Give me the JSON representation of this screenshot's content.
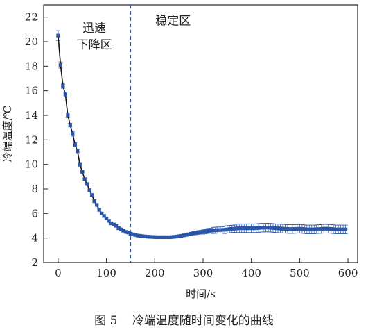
{
  "chart_data": {
    "type": "scatter",
    "xlabel": "时间/s",
    "ylabel": "冷端温度/℃",
    "xlim": [
      -30,
      620
    ],
    "ylim": [
      2,
      23
    ],
    "x_ticks": [
      0,
      100,
      200,
      300,
      400,
      500,
      600
    ],
    "y_ticks": [
      2,
      4,
      6,
      8,
      10,
      12,
      14,
      16,
      18,
      20,
      22
    ],
    "grid": false,
    "legend": "none",
    "marker_color": "#2b56a8",
    "line_color": "#111111",
    "divider": {
      "x": 150,
      "style": "dashed",
      "color": "#2b56a8"
    },
    "region_labels": [
      {
        "lines": [
          "迅速",
          "下降区"
        ],
        "x": 75,
        "y": 20.8
      },
      {
        "lines": [
          "稳定区"
        ],
        "x": 238,
        "y": 21.4
      }
    ],
    "series": [
      {
        "x": [
          0,
          5,
          10,
          15,
          20,
          25,
          30,
          35,
          40,
          45,
          50,
          55,
          60,
          65,
          70,
          75,
          80,
          85,
          90,
          95,
          100,
          105,
          110,
          115,
          120,
          125,
          130,
          135,
          140,
          145,
          150,
          155,
          160,
          165,
          170,
          175,
          180,
          185,
          190,
          195,
          200,
          205,
          210,
          215,
          220,
          225,
          230,
          235,
          240,
          245,
          250,
          255,
          260,
          265,
          270,
          275,
          280,
          285,
          290,
          295,
          300,
          305,
          310,
          315,
          320,
          325,
          330,
          335,
          340,
          345,
          350,
          355,
          360,
          365,
          370,
          375,
          380,
          385,
          390,
          395,
          400,
          405,
          410,
          415,
          420,
          425,
          430,
          435,
          440,
          445,
          450,
          455,
          460,
          465,
          470,
          475,
          480,
          485,
          490,
          495,
          500,
          505,
          510,
          515,
          520,
          525,
          530,
          535,
          540,
          545,
          550,
          555,
          560,
          565,
          570,
          575,
          580,
          585,
          590,
          595
        ],
        "y": [
          20.5,
          18.1,
          16.4,
          15.7,
          14.0,
          13.2,
          12.5,
          11.6,
          11.1,
          10.0,
          9.4,
          8.8,
          8.4,
          7.9,
          7.5,
          7.0,
          6.7,
          6.3,
          6.0,
          5.8,
          5.6,
          5.4,
          5.2,
          5.1,
          5.0,
          4.8,
          4.7,
          4.6,
          4.5,
          4.45,
          4.35,
          4.3,
          4.25,
          4.2,
          4.18,
          4.15,
          4.13,
          4.11,
          4.1,
          4.09,
          4.08,
          4.07,
          4.07,
          4.07,
          4.07,
          4.07,
          4.07,
          4.08,
          4.1,
          4.12,
          4.15,
          4.18,
          4.22,
          4.26,
          4.3,
          4.35,
          4.4,
          4.42,
          4.45,
          4.48,
          4.52,
          4.55,
          4.58,
          4.6,
          4.62,
          4.63,
          4.65,
          4.65,
          4.66,
          4.67,
          4.7,
          4.72,
          4.74,
          4.76,
          4.78,
          4.8,
          4.8,
          4.8,
          4.8,
          4.8,
          4.8,
          4.8,
          4.8,
          4.82,
          4.84,
          4.84,
          4.85,
          4.85,
          4.84,
          4.82,
          4.8,
          4.78,
          4.78,
          4.76,
          4.75,
          4.74,
          4.73,
          4.73,
          4.74,
          4.75,
          4.75,
          4.74,
          4.72,
          4.7,
          4.7,
          4.7,
          4.7,
          4.72,
          4.73,
          4.74,
          4.76,
          4.76,
          4.75,
          4.74,
          4.72,
          4.7,
          4.7,
          4.7,
          4.7,
          4.7
        ],
        "error": [
          0.4,
          0.25,
          0.2,
          0.2,
          0.2,
          0.15,
          0.2,
          0.15,
          0.15,
          0.15,
          0.1,
          0.1,
          0.1,
          0.1,
          0.1,
          0.1,
          0.1,
          0.1,
          0.1,
          0.1,
          0.1,
          0.1,
          0.1,
          0.1,
          0.1,
          0.1,
          0.1,
          0.1,
          0.1,
          0.1,
          0.1,
          0.1,
          0.1,
          0.1,
          0.1,
          0.1,
          0.1,
          0.1,
          0.1,
          0.1,
          0.1,
          0.1,
          0.1,
          0.1,
          0.1,
          0.1,
          0.1,
          0.1,
          0.1,
          0.1,
          0.1,
          0.1,
          0.1,
          0.12,
          0.12,
          0.12,
          0.15,
          0.15,
          0.15,
          0.15,
          0.2,
          0.2,
          0.2,
          0.2,
          0.25,
          0.25,
          0.25,
          0.25,
          0.25,
          0.3,
          0.3,
          0.3,
          0.3,
          0.3,
          0.35,
          0.35,
          0.35,
          0.35,
          0.35,
          0.35,
          0.35,
          0.35,
          0.35,
          0.35,
          0.35,
          0.35,
          0.35,
          0.35,
          0.35,
          0.35,
          0.35,
          0.35,
          0.35,
          0.35,
          0.35,
          0.35,
          0.35,
          0.35,
          0.35,
          0.35,
          0.35,
          0.35,
          0.35,
          0.35,
          0.35,
          0.35,
          0.35,
          0.35,
          0.35,
          0.35,
          0.35,
          0.35,
          0.35,
          0.35,
          0.35,
          0.35,
          0.35,
          0.35,
          0.35,
          0.35
        ]
      }
    ]
  },
  "caption": {
    "figure_number": "图 5",
    "text": "冷端温度随时间变化的曲线"
  }
}
